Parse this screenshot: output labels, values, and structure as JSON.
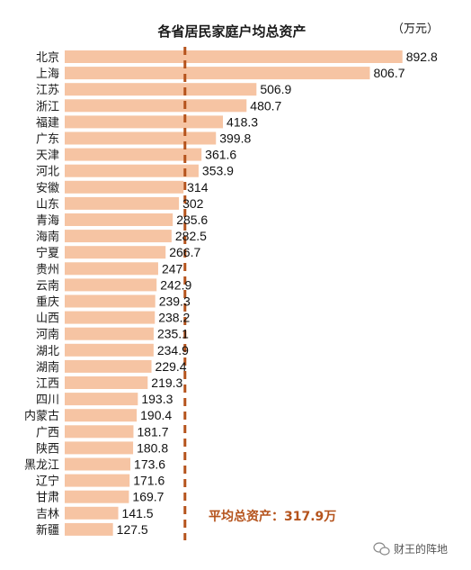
{
  "chart_data": {
    "type": "bar",
    "orientation": "horizontal",
    "title": "各省居民家庭户均总资产",
    "unit": "（万元）",
    "categories": [
      "北京",
      "上海",
      "江苏",
      "浙江",
      "福建",
      "广东",
      "天津",
      "河北",
      "安徽",
      "山东",
      "青海",
      "海南",
      "宁夏",
      "贵州",
      "云南",
      "重庆",
      "山西",
      "河南",
      "湖北",
      "湖南",
      "江西",
      "四川",
      "内蒙古",
      "广西",
      "陕西",
      "黑龙江",
      "辽宁",
      "甘肃",
      "吉林",
      "新疆"
    ],
    "values": [
      892.8,
      806.7,
      506.9,
      480.7,
      418.3,
      399.8,
      361.6,
      353.9,
      314,
      302,
      285.6,
      282.5,
      266.7,
      247,
      242.9,
      239.3,
      238.2,
      235.1,
      234.9,
      229.4,
      219.3,
      193.3,
      190.4,
      181.7,
      180.8,
      173.6,
      171.6,
      169.7,
      141.5,
      127.5
    ],
    "value_labels": [
      "892.8",
      "806.7",
      "506.9",
      "480.7",
      "418.3",
      "399.8",
      "361.6",
      "353.9",
      "314",
      "302",
      "285.6",
      "282.5",
      "266.7",
      "247",
      "242.9",
      "239.3",
      "238.2",
      "235.1",
      "234.9",
      "229.4",
      "219.3",
      "193.3",
      "190.4",
      "181.7",
      "180.8",
      "173.6",
      "171.6",
      "169.7",
      "141.5",
      "127.5"
    ],
    "average": {
      "value": 317.9,
      "label": "平均总资产：317.9万"
    },
    "xlim": [
      0,
      960
    ],
    "grid": false,
    "legend": "none"
  },
  "watermark": {
    "text": "财王的阵地",
    "icon": "wechat-bubble-icon"
  },
  "colors": {
    "bar": "#F6C4A3",
    "average_line": "#B5531C",
    "average_text": "#B5531C",
    "text": "#111111"
  }
}
